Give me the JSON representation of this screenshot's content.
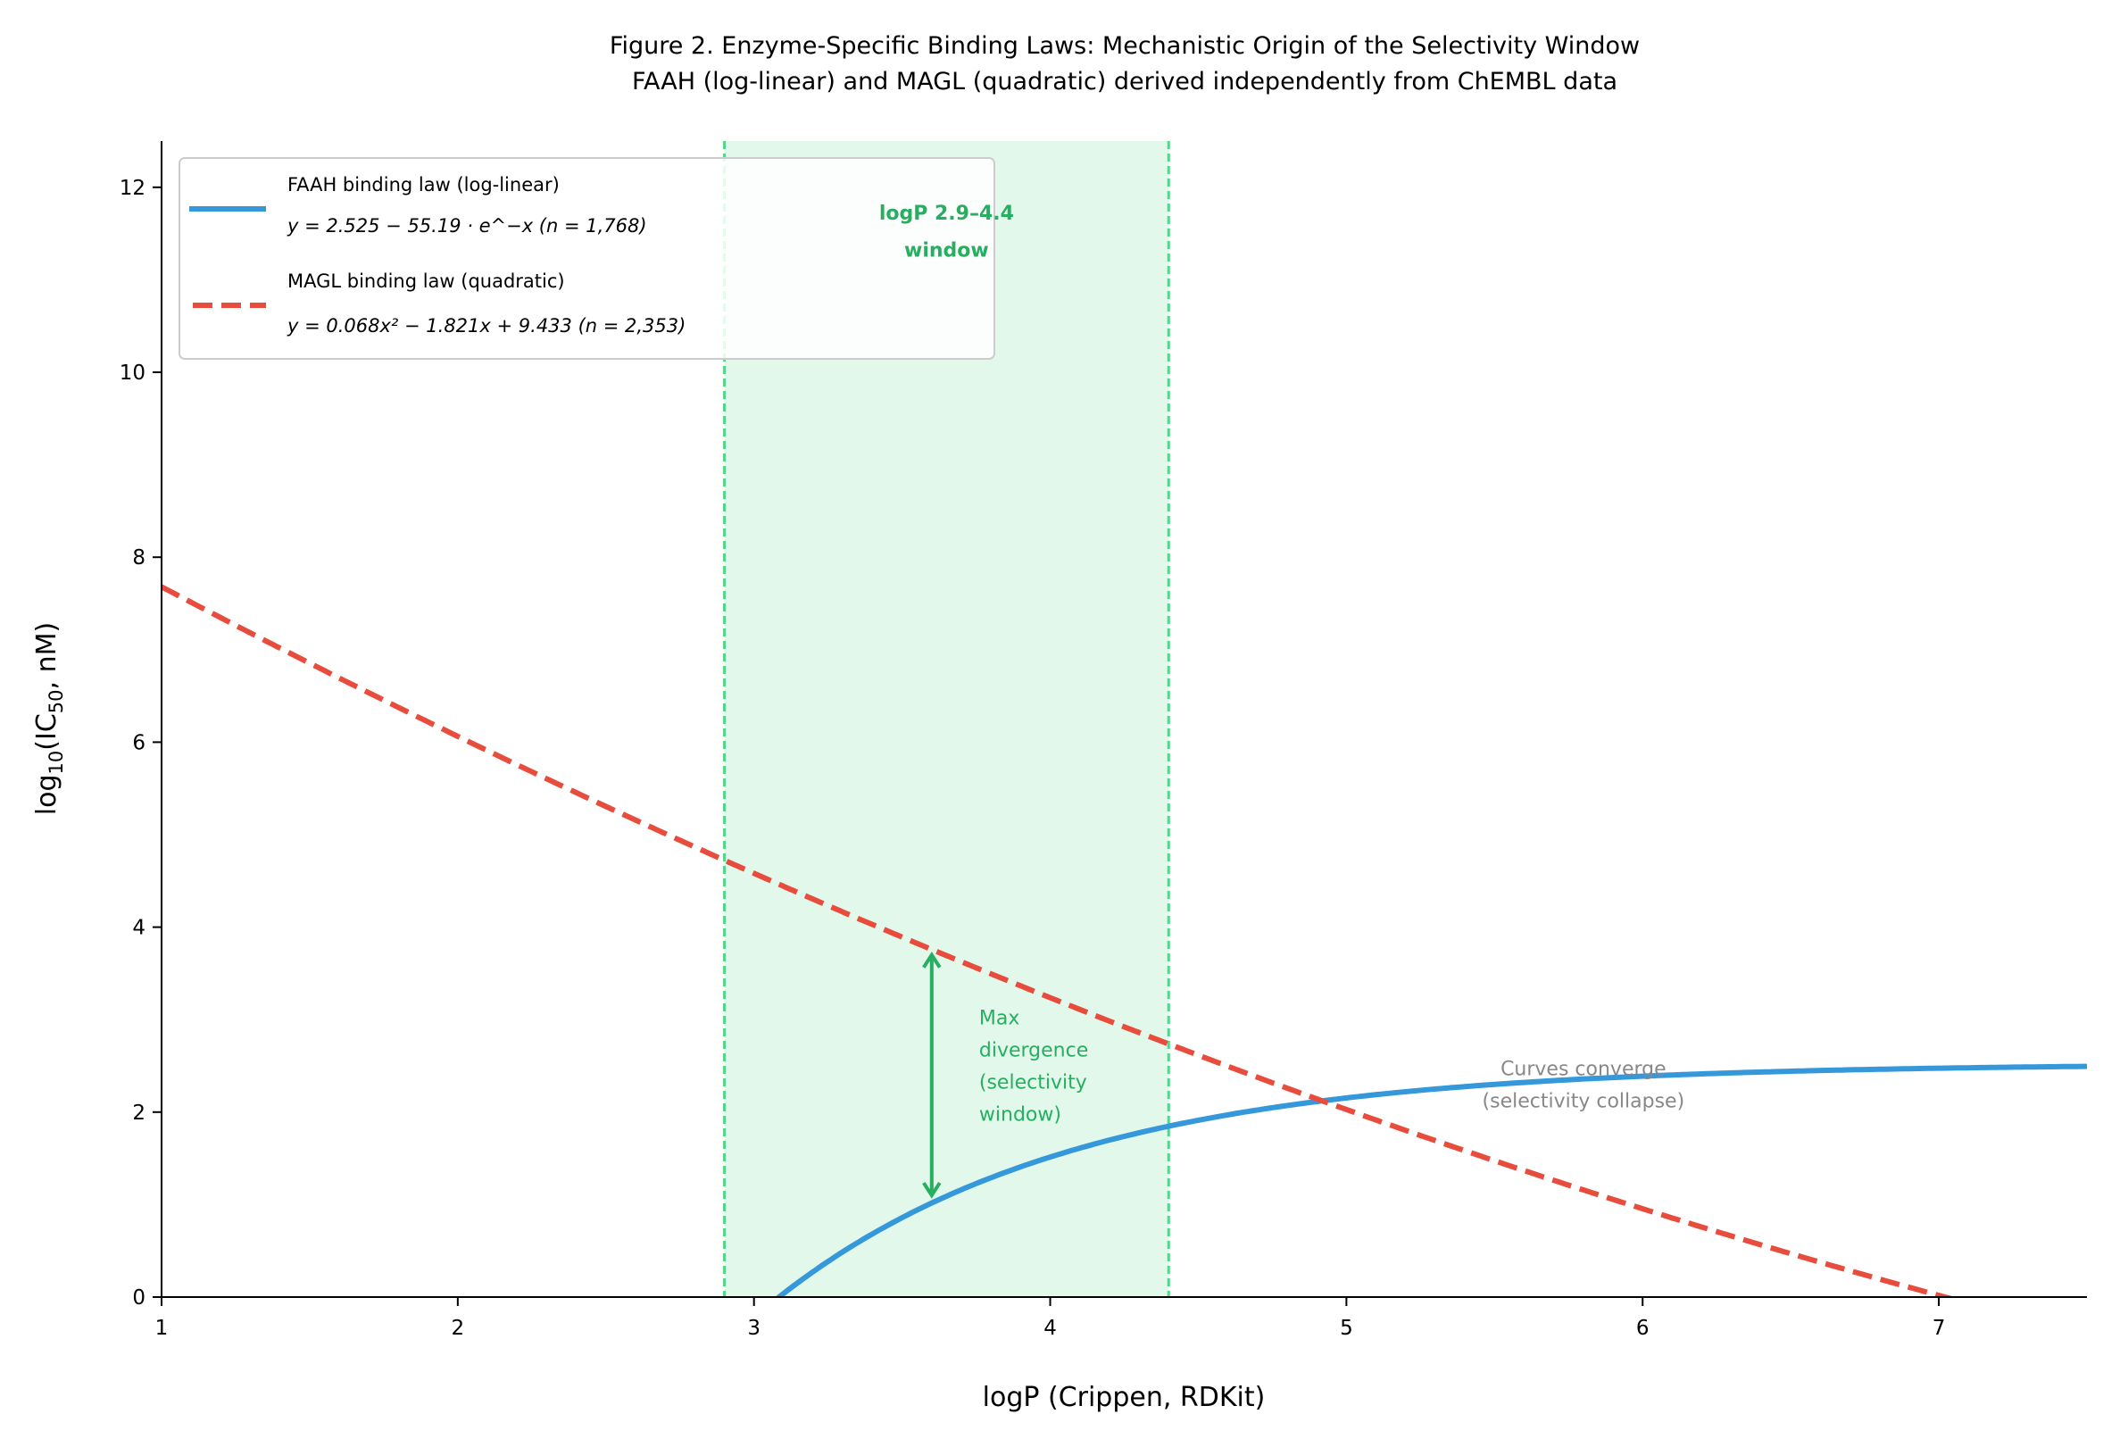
{
  "chart_data": {
    "type": "line",
    "title": "Figure 2. Enzyme-Specific Binding Laws: Mechanistic Origin of the Selectivity Window",
    "subtitle": "FAAH (log-linear) and MAGL (quadratic) derived independently from ChEMBL data",
    "xlabel": "logP (Crippen, RDKit)",
    "ylabel": "log10(IC50, nM)",
    "xlim": [
      1,
      7.5
    ],
    "ylim": [
      0,
      12.5
    ],
    "xticks": [
      1,
      2,
      3,
      4,
      5,
      6,
      7
    ],
    "yticks": [
      0,
      2,
      4,
      6,
      8,
      10,
      12
    ],
    "grid": false,
    "legend_position": "top-left",
    "series": [
      {
        "name": "FAAH binding law (log-linear)",
        "equation": "y = 2.525 − 55.19 · e^−x  (n = 1,768)",
        "a": 2.525,
        "b": 55.19,
        "n": "1,768",
        "color": "#3498db",
        "style": "solid"
      },
      {
        "name": "MAGL binding law (quadratic)",
        "equation": "y = 0.068x² − 1.821x + 9.433  (n = 2,353)",
        "c2": 0.068,
        "c1": -1.821,
        "c0": 9.433,
        "n": "2,353",
        "color": "#e74c3c",
        "style": "dashed"
      }
    ],
    "window": {
      "x0": 2.9,
      "x1": 4.4,
      "label_line1": "logP 2.9–4.4",
      "label_line2": "window",
      "color": "#27ae60"
    },
    "annotations": {
      "divergence": {
        "x": 3.6,
        "y_from": 1.1,
        "y_to": 3.7,
        "lines": [
          "Max",
          "divergence",
          "(selectivity",
          "window)"
        ],
        "color": "#27ae60"
      },
      "converge": {
        "lines": [
          "Curves converge",
          "(selectivity collapse)"
        ],
        "color": "#888888"
      }
    }
  }
}
